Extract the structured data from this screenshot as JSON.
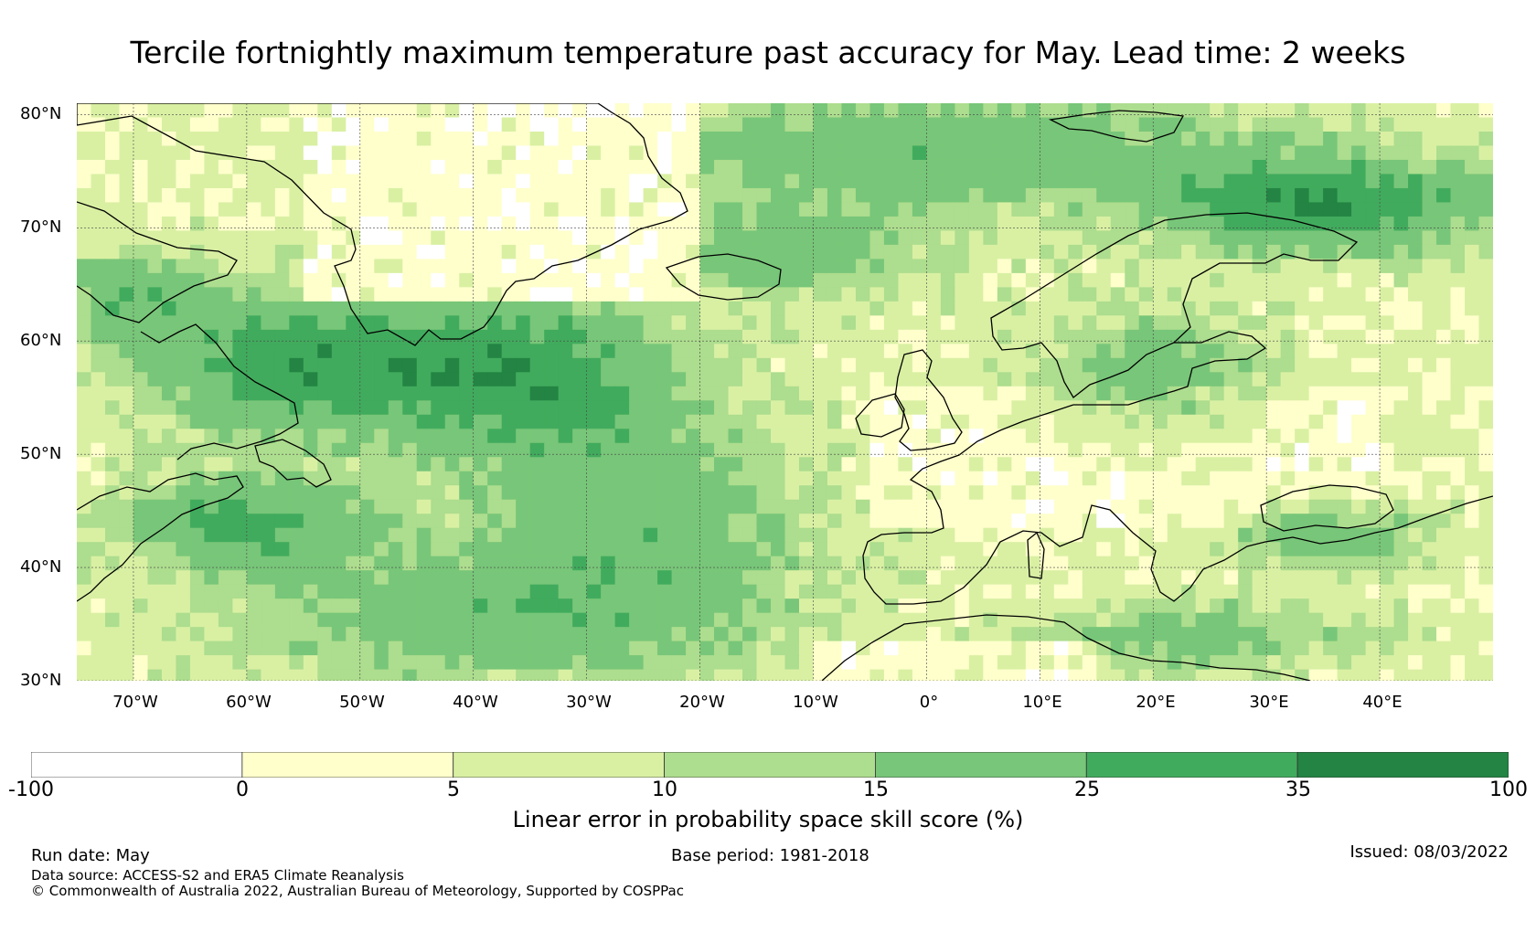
{
  "title": "Tercile fortnightly maximum temperature past accuracy for May. Lead time: 2 weeks",
  "map": {
    "region": "North Atlantic / Europe",
    "lon_range": [
      -75,
      50
    ],
    "lat_range": [
      30,
      81
    ],
    "lat_ticks": [
      "80°N",
      "70°N",
      "60°N",
      "50°N",
      "40°N",
      "30°N"
    ],
    "lon_ticks": [
      "70°W",
      "60°W",
      "50°W",
      "40°W",
      "30°W",
      "20°W",
      "10°W",
      "0°",
      "10°E",
      "20°E",
      "30°E",
      "40°E"
    ],
    "grid": true
  },
  "colorbar": {
    "bins": [
      {
        "from": -100,
        "to": 0,
        "color": "#ffffff"
      },
      {
        "from": 0,
        "to": 5,
        "color": "#ffffcc"
      },
      {
        "from": 5,
        "to": 10,
        "color": "#d9f0a3"
      },
      {
        "from": 10,
        "to": 15,
        "color": "#addd8e"
      },
      {
        "from": 15,
        "to": 25,
        "color": "#78c679"
      },
      {
        "from": 25,
        "to": 35,
        "color": "#41ab5d"
      },
      {
        "from": 35,
        "to": 100,
        "color": "#238443"
      }
    ],
    "tick_labels": [
      "-100",
      "0",
      "5",
      "10",
      "15",
      "25",
      "35",
      "100"
    ],
    "label": "Linear error in probability space skill score (%)"
  },
  "footer": {
    "run_date": "Run date: May",
    "base_period": "Base period: 1981-2018",
    "issued": "Issued: 08/03/2022",
    "data_source": "Data source: ACCESS-S2 and ERA5 Climate Reanalysis",
    "copyright": "© Commonwealth of Australia 2022, Australian Bureau of Meteorology, Supported by COSPPac"
  }
}
